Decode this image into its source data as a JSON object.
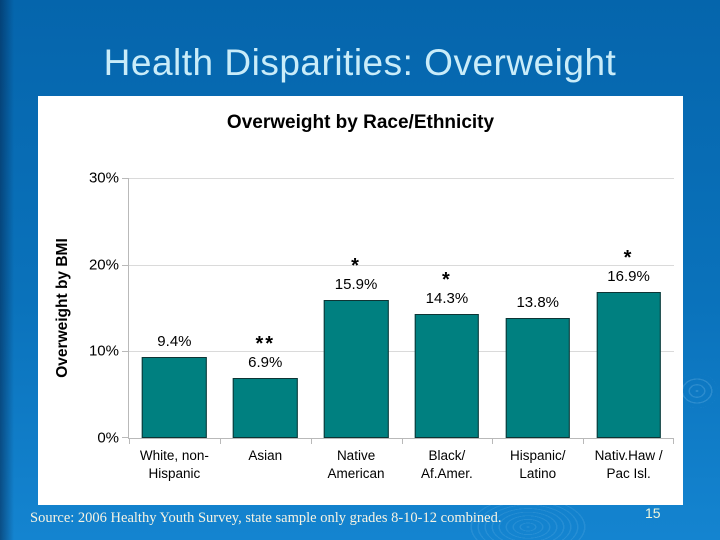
{
  "slide": {
    "title": "Health Disparities: Overweight"
  },
  "chart_data": {
    "type": "bar",
    "title": "Overweight by Race/Ethnicity",
    "xlabel": "",
    "ylabel": "Overweight by BMI",
    "categories": [
      "White, non-\nHispanic",
      "Asian",
      "Native\nAmerican",
      "Black/\nAf.Amer.",
      "Hispanic/\nLatino",
      "Nativ.Haw /\nPac Isl."
    ],
    "values": [
      9.4,
      6.9,
      15.9,
      14.3,
      13.8,
      16.9
    ],
    "value_labels": [
      "9.4%",
      "6.9%",
      "15.9%",
      "14.3%",
      "13.8%",
      "16.9%"
    ],
    "annotations": [
      "",
      "**",
      "*",
      "*",
      "",
      "*"
    ],
    "yticks": [
      0,
      10,
      20,
      30
    ],
    "ytick_labels": [
      "0%",
      "10%",
      "20%",
      "30%"
    ],
    "ylim": [
      0,
      30
    ],
    "grid": true,
    "legend": "none",
    "bar_color": "#008080",
    "bar_border_color": "#0e3434"
  },
  "footer": {
    "source": "Source: 2006 Healthy Youth Survey, state sample only grades 8-10-12 combined.",
    "page_number": "15"
  },
  "colors": {
    "background_top": "#0565ac",
    "background_bottom": "#1484d0",
    "slide_title_text": "#c9ecf9",
    "panel_background": "#ffffff",
    "axis_line": "#b9b9b9",
    "gridline": "#dadada",
    "chart_text": "#000000"
  }
}
